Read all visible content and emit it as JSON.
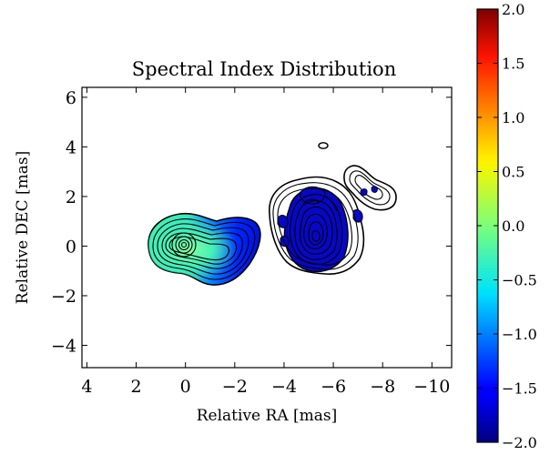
{
  "chart_data": {
    "type": "contour",
    "title": "Spectral Index Distribution",
    "xlabel": "Relative RA [mas]",
    "ylabel": "Relative DEC [mas]",
    "xlim": [
      4.2,
      -10.8
    ],
    "ylim": [
      -4.9,
      6.4
    ],
    "x_ticks": [
      4,
      2,
      0,
      -2,
      -4,
      -6,
      -8,
      -10
    ],
    "x_tick_labels": [
      "4",
      "2",
      "0",
      "−2",
      "−4",
      "−6",
      "−8",
      "−10"
    ],
    "y_ticks": [
      -4,
      -2,
      0,
      2,
      4,
      6
    ],
    "y_tick_labels": [
      "−4",
      "−2",
      "0",
      "2",
      "4",
      "6"
    ],
    "colorbar": {
      "range": [
        -2.0,
        2.0
      ],
      "ticks": [
        2.0,
        1.5,
        1.0,
        0.5,
        0.0,
        -0.5,
        -1.0,
        -1.5,
        -2.0
      ],
      "tick_labels": [
        "2.0",
        "1.5",
        "1.0",
        "0.5",
        "0.0",
        "−0.5",
        "−1.0",
        "−1.5",
        "−2.0"
      ],
      "colormap": "jet"
    },
    "components": [
      {
        "x": 0.0,
        "y": 0.05,
        "spectral_index_core": 0.0,
        "spectral_index_edge": -2.0
      },
      {
        "x": -5.2,
        "y": 0.2,
        "spectral_index_core": -2.0,
        "spectral_index_edge": -2.0
      },
      {
        "x": -7.6,
        "y": 2.2,
        "spectral_index_core": -2.0,
        "spectral_index_edge": -2.0
      }
    ]
  }
}
